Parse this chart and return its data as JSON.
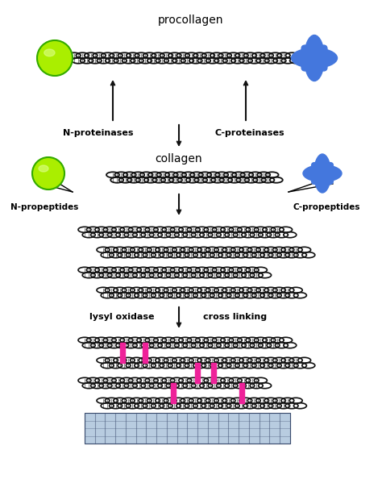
{
  "bg_color": "#ffffff",
  "green_ball_color": "#aaee00",
  "green_ball_outline": "#33aa00",
  "blue_star_color": "#4477dd",
  "pink_color": "#ee2299",
  "text_color": "#000000",
  "chain_color": "#111111",
  "fibril_bg": "#c0cfe0",
  "fibril_line": "#334466",
  "labels": {
    "procollagen": "procollagen",
    "n_proteinases": "N-proteinases",
    "c_proteinases": "C-proteinases",
    "collagen": "collagen",
    "n_propeptides": "N-propeptides",
    "c_propeptides": "C-propeptides",
    "lysyl_oxidase": "lysyl oxidase",
    "cross_linking": "cross linking"
  }
}
